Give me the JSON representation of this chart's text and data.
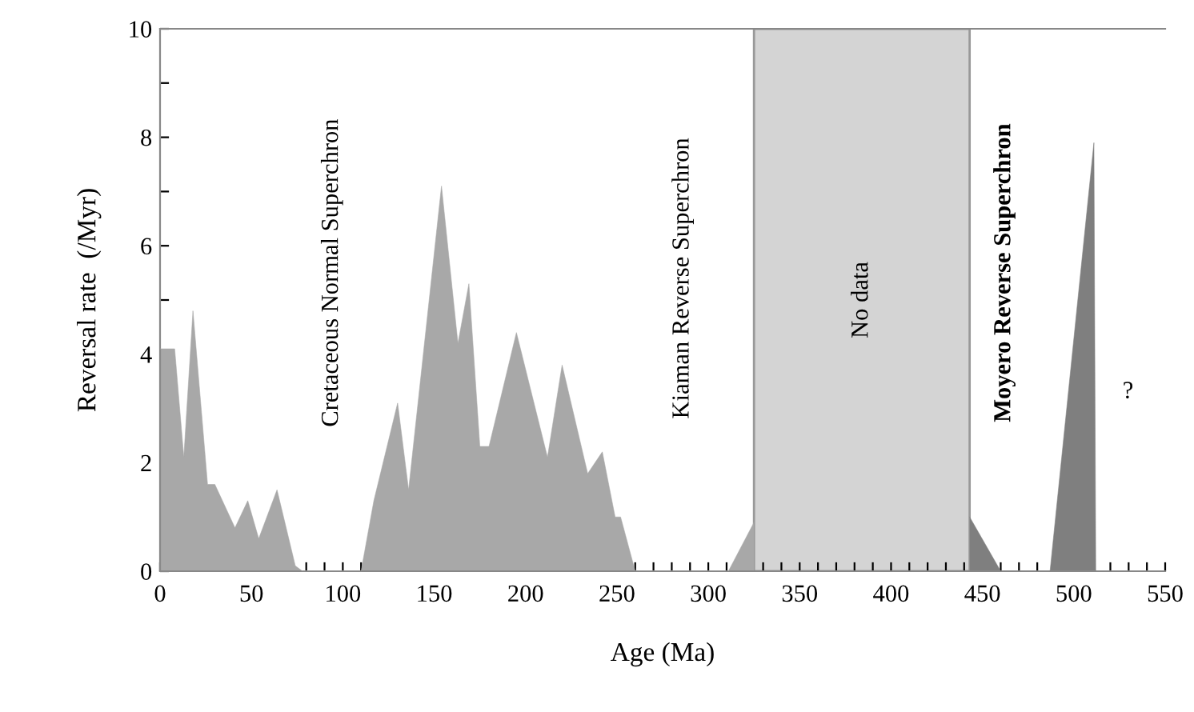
{
  "chart_data": {
    "type": "area",
    "xlabel": "Age (Ma)",
    "ylabel": "Reversal rate  (/Myr)",
    "xlim": [
      0,
      550
    ],
    "ylim": [
      0,
      10
    ],
    "xticks": [
      0,
      {
        "value": 10,
        "label": null
      },
      {
        "value": 20,
        "label": null
      },
      {
        "value": 30,
        "label": null
      },
      {
        "value": 40,
        "label": null
      },
      50,
      {
        "value": 60,
        "label": null
      },
      {
        "value": 70,
        "label": null
      },
      {
        "value": 80,
        "label": null
      },
      {
        "value": 90,
        "label": null
      },
      100,
      {
        "value": 110,
        "label": null
      },
      {
        "value": 120,
        "label": null
      },
      {
        "value": 130,
        "label": null
      },
      {
        "value": 140,
        "label": null
      },
      150,
      {
        "value": 160,
        "label": null
      },
      {
        "value": 170,
        "label": null
      },
      {
        "value": 180,
        "label": null
      },
      {
        "value": 190,
        "label": null
      },
      200,
      {
        "value": 210,
        "label": null
      },
      {
        "value": 220,
        "label": null
      },
      {
        "value": 230,
        "label": null
      },
      {
        "value": 240,
        "label": null
      },
      250,
      {
        "value": 260,
        "label": null
      },
      {
        "value": 270,
        "label": null
      },
      {
        "value": 280,
        "label": null
      },
      {
        "value": 290,
        "label": null
      },
      300,
      {
        "value": 310,
        "label": null
      },
      {
        "value": 320,
        "label": null
      },
      {
        "value": 330,
        "label": null
      },
      {
        "value": 340,
        "label": null
      },
      350,
      {
        "value": 360,
        "label": null
      },
      {
        "value": 370,
        "label": null
      },
      {
        "value": 380,
        "label": null
      },
      {
        "value": 390,
        "label": null
      },
      400,
      {
        "value": 410,
        "label": null
      },
      {
        "value": 420,
        "label": null
      },
      {
        "value": 430,
        "label": null
      },
      {
        "value": 440,
        "label": null
      },
      450,
      {
        "value": 460,
        "label": null
      },
      {
        "value": 470,
        "label": null
      },
      {
        "value": 480,
        "label": null
      },
      {
        "value": 490,
        "label": null
      },
      500,
      {
        "value": 510,
        "label": null
      },
      {
        "value": 520,
        "label": null
      },
      {
        "value": 530,
        "label": null
      },
      {
        "value": 540,
        "label": null
      },
      550
    ],
    "yticks": [
      0,
      {
        "value": 1,
        "label": null
      },
      2,
      {
        "value": 3,
        "label": null
      },
      4,
      {
        "value": 5,
        "label": null
      },
      6,
      {
        "value": 7,
        "label": null
      },
      8,
      {
        "value": 9,
        "label": null
      },
      10
    ],
    "grid": false,
    "legend": false,
    "marker": "none",
    "series": [
      {
        "color": "#a8a8a8",
        "x": [
          0,
          8,
          13,
          18,
          26,
          30,
          41,
          48,
          54,
          64,
          74,
          78,
          110,
          117,
          130,
          136,
          154,
          163,
          169,
          175,
          180,
          195,
          212,
          220,
          234,
          242,
          249,
          252,
          260,
          311,
          325
        ],
        "values": [
          4.1,
          4.1,
          2.1,
          4.8,
          1.6,
          1.6,
          0.8,
          1.3,
          0.6,
          1.5,
          0.1,
          0,
          0,
          1.3,
          3.1,
          1.5,
          7.1,
          4.2,
          5.3,
          2.3,
          2.3,
          4.4,
          2.1,
          3.8,
          1.8,
          2.2,
          1.0,
          1.0,
          0,
          0,
          0.9
        ]
      },
      {
        "color": "#7f7f7f",
        "x": [
          443,
          460,
          487,
          511,
          512
        ],
        "values": [
          1.0,
          0,
          0,
          7.9,
          0
        ]
      }
    ],
    "bands": [
      {
        "axis": "x",
        "from": 325,
        "to": 443,
        "label": "No data",
        "color": "#d4d4d4"
      }
    ],
    "annotations": [
      "Cretaceous Normal Superchron",
      "Kiaman Reverse Superchron",
      "Moyero Reverse Superchron",
      "?"
    ]
  }
}
